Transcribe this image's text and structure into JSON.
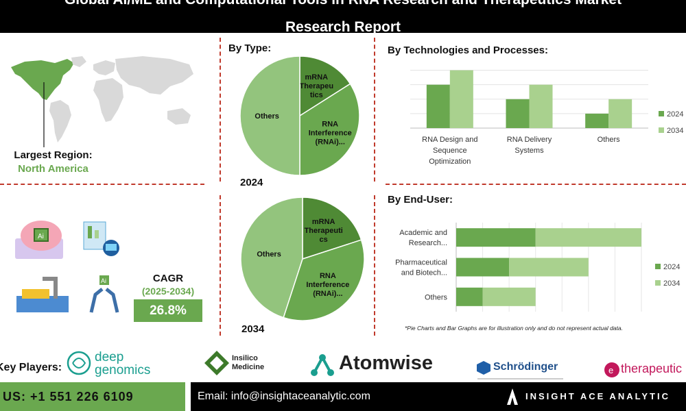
{
  "title": {
    "line1": "Global AI/ML and Computational Tools in RNA Research and Therapeutics Market",
    "line2": "Research Report"
  },
  "region": {
    "label": "Largest Region:",
    "value": "North America",
    "map_highlight_color": "#6aa84f",
    "map_base_color": "#d9d9d9"
  },
  "cagr": {
    "label": "CAGR",
    "period": "(2025-2034)",
    "value": "26.8%"
  },
  "icons": [
    "ai-brain-icon",
    "ai-robot-icon",
    "robot-arm-assembly-icon",
    "robotic-arm-ai-icon"
  ],
  "colors": {
    "dark_green": "#5b9a3d",
    "mid_green": "#6aa84f",
    "light_green": "#a9d18e",
    "pie_dark": "#4f8a35",
    "pie_mid": "#6aa84f",
    "pie_light": "#93c47d",
    "divider": "#c0392b"
  },
  "chart_data": [
    {
      "id": "by_type",
      "type": "pie",
      "title": "By Type:",
      "pies": [
        {
          "year": "2024",
          "slices": [
            {
              "label": "mRNA Therapeutics",
              "display": [
                "mRNA",
                "Therapeu",
                "tics"
              ],
              "value": 16
            },
            {
              "label": "RNA Interference (RNAi)...",
              "display": [
                "RNA",
                "Interference",
                "(RNAi)..."
              ],
              "value": 34
            },
            {
              "label": "Others",
              "display": [
                "Others"
              ],
              "value": 50
            }
          ]
        },
        {
          "year": "2034",
          "slices": [
            {
              "label": "mRNA Therapeutics",
              "display": [
                "mRNA",
                "Therapeuti",
                "cs"
              ],
              "value": 20
            },
            {
              "label": "RNA Interference (RNAi)...",
              "display": [
                "RNA",
                "Interference",
                "(RNAi)..."
              ],
              "value": 35
            },
            {
              "label": "Others",
              "display": [
                "Others"
              ],
              "value": 45
            }
          ]
        }
      ]
    },
    {
      "id": "by_technologies",
      "type": "bar",
      "title": "By Technologies and Processes:",
      "categories": [
        "RNA Design and Sequence Optimization",
        "RNA Delivery Systems",
        "Others"
      ],
      "category_display": [
        [
          "RNA Design and",
          "Sequence",
          "Optimization"
        ],
        [
          "RNA Delivery",
          "Systems"
        ],
        [
          "Others"
        ]
      ],
      "series": [
        {
          "name": "2024",
          "values": [
            30,
            20,
            10
          ]
        },
        {
          "name": "2034",
          "values": [
            40,
            30,
            20
          ]
        }
      ],
      "ylim": [
        0,
        45
      ],
      "grid": true,
      "legend": "right"
    },
    {
      "id": "by_end_user",
      "type": "bar",
      "orientation": "horizontal",
      "stacked": true,
      "title": "By End-User:",
      "categories": [
        "Academic and Research...",
        "Pharmaceutical and Biotech...",
        "Others"
      ],
      "category_display": [
        [
          "Academic and",
          "Research..."
        ],
        [
          "Pharmaceutical",
          "and Biotech..."
        ],
        [
          "Others"
        ]
      ],
      "series": [
        {
          "name": "2024",
          "values": [
            15,
            10,
            5
          ]
        },
        {
          "name": "2034",
          "values": [
            20,
            15,
            10
          ]
        }
      ],
      "xlim": [
        0,
        35
      ],
      "grid": true,
      "legend": "right"
    }
  ],
  "disclaimer": "*Pie Charts and Bar Graphs are for illustration only and do not represent actual data.",
  "key_players": {
    "label": "Key Players:",
    "companies": [
      {
        "line1": "deep",
        "line2": "genomics"
      },
      {
        "line1": "Insilico",
        "line2": "Medicine"
      },
      {
        "name": "Atomwise"
      },
      {
        "name": "Schrödinger"
      },
      {
        "name": "therapeutic"
      }
    ]
  },
  "footer": {
    "phone": "US: +1 551 226 6109",
    "email": "Email: info@insightaceanalytic.com",
    "brand": "INSIGHT ACE ANALYTIC"
  }
}
